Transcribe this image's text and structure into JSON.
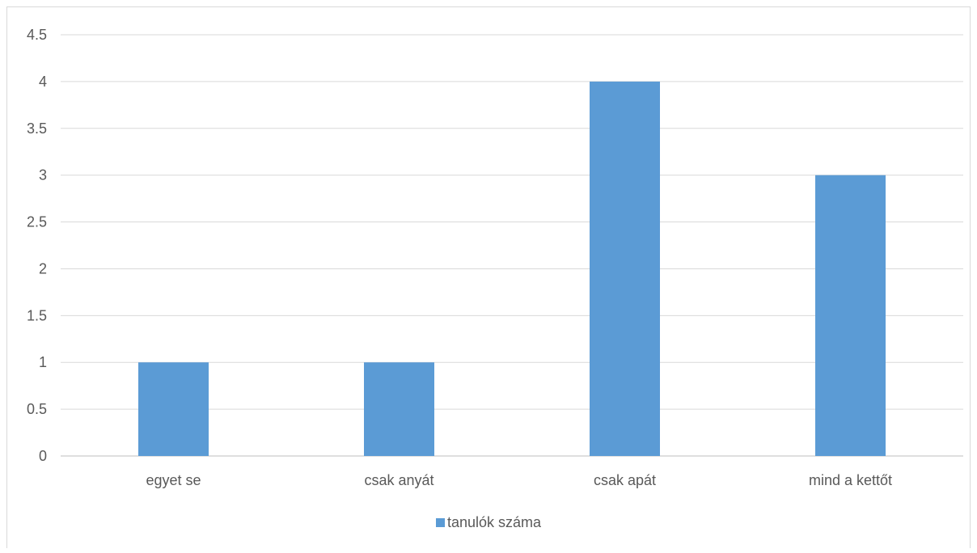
{
  "chart_data": {
    "type": "bar",
    "title": "",
    "xlabel": "",
    "ylabel": "",
    "categories": [
      "egyet se",
      "csak anyát",
      "csak apát",
      "mind a kettőt"
    ],
    "series": [
      {
        "name": "tanulók száma",
        "values": [
          1,
          1,
          4,
          3
        ],
        "color": "#5b9bd5"
      }
    ],
    "ylim": [
      0,
      4.5
    ],
    "yticks": [
      "0",
      "0.5",
      "1",
      "1.5",
      "2",
      "2.5",
      "3",
      "3.5",
      "4",
      "4.5"
    ],
    "grid": true,
    "legend_position": "bottom"
  },
  "colors": {
    "bar": "#5b9bd5",
    "grid": "#d9d9d9",
    "axis": "#bfbfbf",
    "text": "#595959"
  }
}
